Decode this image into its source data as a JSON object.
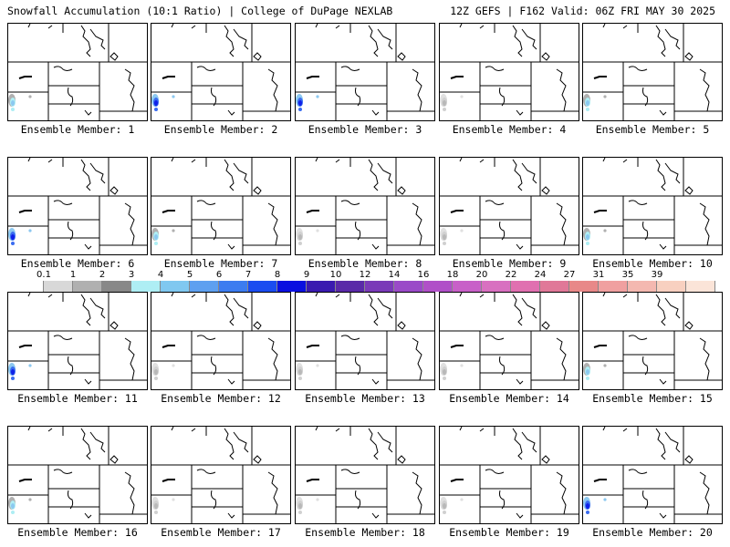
{
  "header": {
    "title_left": "Snowfall Accumulation (10:1 Ratio) | College of DuPage NEXLAB",
    "title_right": "12Z GEFS | F162 Valid: 06Z FRI MAY 30 2025"
  },
  "members": [
    {
      "label": "Ensemble Member: 1",
      "snow": "light-blue"
    },
    {
      "label": "Ensemble Member: 2",
      "snow": "blue"
    },
    {
      "label": "Ensemble Member: 3",
      "snow": "blue"
    },
    {
      "label": "Ensemble Member: 4",
      "snow": "gray"
    },
    {
      "label": "Ensemble Member: 5",
      "snow": "light-blue"
    },
    {
      "label": "Ensemble Member: 6",
      "snow": "blue"
    },
    {
      "label": "Ensemble Member: 7",
      "snow": "light-blue"
    },
    {
      "label": "Ensemble Member: 8",
      "snow": "gray"
    },
    {
      "label": "Ensemble Member: 9",
      "snow": "gray"
    },
    {
      "label": "Ensemble Member: 10",
      "snow": "light-blue"
    },
    {
      "label": "Ensemble Member: 11",
      "snow": "blue"
    },
    {
      "label": "Ensemble Member: 12",
      "snow": "gray"
    },
    {
      "label": "Ensemble Member: 13",
      "snow": "gray"
    },
    {
      "label": "Ensemble Member: 14",
      "snow": "gray"
    },
    {
      "label": "Ensemble Member: 15",
      "snow": "light-blue"
    },
    {
      "label": "Ensemble Member: 16",
      "snow": "light-blue"
    },
    {
      "label": "Ensemble Member: 17",
      "snow": "gray"
    },
    {
      "label": "Ensemble Member: 18",
      "snow": "gray"
    },
    {
      "label": "Ensemble Member: 19",
      "snow": "gray"
    },
    {
      "label": "Ensemble Member: 20",
      "snow": "blue"
    }
  ],
  "colorbar": {
    "labels": [
      "0.1",
      "1",
      "2",
      "3",
      "4",
      "5",
      "6",
      "7",
      "8",
      "9",
      "10",
      "12",
      "14",
      "16",
      "18",
      "20",
      "22",
      "24",
      "27",
      "31",
      "35",
      "39"
    ],
    "colors": [
      "#ffffff",
      "#d8d8d8",
      "#b0b0b0",
      "#888888",
      "#aeeef4",
      "#80c8f0",
      "#5ea0f0",
      "#3c7cf0",
      "#1a4cf0",
      "#0a10e0",
      "#3a1ab0",
      "#5a2aa8",
      "#7a3ab8",
      "#9a4ac8",
      "#b050c8",
      "#c860c8",
      "#d870c0",
      "#e070b0",
      "#e07898",
      "#e88888",
      "#f0a0a0",
      "#f4b8b0",
      "#f8d0c0",
      "#fbe4d8"
    ]
  }
}
